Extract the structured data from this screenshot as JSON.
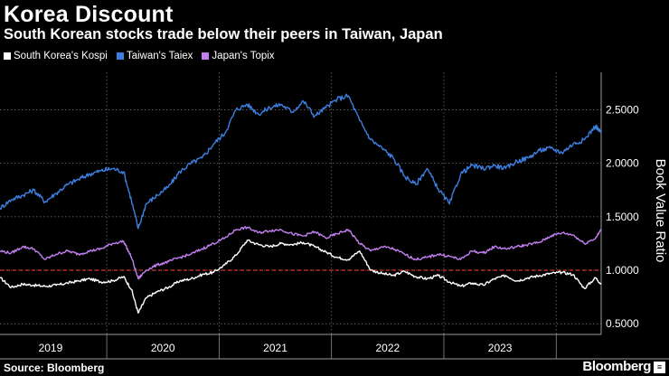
{
  "title": "Korea Discount",
  "subtitle": "South Korean stocks trade below their peers in Taiwan, Japan",
  "source": "Source: Bloomberg",
  "brand": "Bloomberg",
  "brand_icon": "bloomberg-logo-icon",
  "chart_data": {
    "type": "line",
    "title": "Korea Discount",
    "subtitle": "South Korean stocks trade below their peers in Taiwan, Japan",
    "ylabel": "Book Value Ratio",
    "xlabel": "",
    "x_range": [
      2018.55,
      2023.9
    ],
    "ylim": [
      0.4,
      2.85
    ],
    "yticks": [
      0.5,
      1.0,
      1.5,
      2.0,
      2.5
    ],
    "ytick_labels": [
      "0.5000",
      "1.0000",
      "1.5000",
      "2.0000",
      "2.5000"
    ],
    "xtick_labels": [
      "2019",
      "2020",
      "2021",
      "2022",
      "2023"
    ],
    "xtick_centers": [
      2019.0,
      2020.0,
      2021.0,
      2022.0,
      2023.0
    ],
    "year_boundaries": [
      2019.5,
      2020.5,
      2021.5,
      2022.5,
      2023.5
    ],
    "grid": "dotted",
    "reference_line": {
      "y": 1.0,
      "color": "#e03030",
      "style": "dashed"
    },
    "legend_position": "top-left",
    "series": [
      {
        "name": "South Korea's Kospi",
        "color": "#ffffff",
        "x": [
          2018.55,
          2018.65,
          2018.75,
          2018.85,
          2018.95,
          2019.05,
          2019.15,
          2019.25,
          2019.35,
          2019.45,
          2019.55,
          2019.65,
          2019.72,
          2019.78,
          2019.85,
          2019.95,
          2020.05,
          2020.15,
          2020.25,
          2020.35,
          2020.45,
          2020.55,
          2020.65,
          2020.75,
          2020.85,
          2020.95,
          2021.05,
          2021.15,
          2021.25,
          2021.35,
          2021.45,
          2021.55,
          2021.65,
          2021.75,
          2021.85,
          2021.95,
          2022.05,
          2022.15,
          2022.25,
          2022.35,
          2022.45,
          2022.55,
          2022.65,
          2022.75,
          2022.85,
          2022.95,
          2023.05,
          2023.15,
          2023.25,
          2023.35,
          2023.45,
          2023.55,
          2023.65,
          2023.75,
          2023.85,
          2023.9
        ],
        "values": [
          0.93,
          0.84,
          0.87,
          0.86,
          0.85,
          0.86,
          0.88,
          0.9,
          0.92,
          0.89,
          0.9,
          0.94,
          0.82,
          0.6,
          0.74,
          0.8,
          0.84,
          0.9,
          0.92,
          0.96,
          0.98,
          1.05,
          1.14,
          1.28,
          1.24,
          1.22,
          1.25,
          1.24,
          1.26,
          1.22,
          1.17,
          1.12,
          1.1,
          1.18,
          1.0,
          0.97,
          0.95,
          0.99,
          0.94,
          0.92,
          0.95,
          0.89,
          0.85,
          0.88,
          0.86,
          0.92,
          0.95,
          0.9,
          0.93,
          0.95,
          0.97,
          0.98,
          0.96,
          0.83,
          0.93,
          0.87
        ]
      },
      {
        "name": "Taiwan's Taiex",
        "color": "#3d7fe0",
        "x": [
          2018.55,
          2018.65,
          2018.75,
          2018.85,
          2018.95,
          2019.05,
          2019.15,
          2019.25,
          2019.35,
          2019.45,
          2019.55,
          2019.65,
          2019.72,
          2019.78,
          2019.85,
          2019.95,
          2020.05,
          2020.15,
          2020.25,
          2020.35,
          2020.45,
          2020.55,
          2020.65,
          2020.75,
          2020.85,
          2020.95,
          2021.05,
          2021.15,
          2021.25,
          2021.35,
          2021.45,
          2021.55,
          2021.65,
          2021.75,
          2021.85,
          2021.95,
          2022.05,
          2022.15,
          2022.25,
          2022.35,
          2022.45,
          2022.55,
          2022.65,
          2022.75,
          2022.85,
          2022.95,
          2023.05,
          2023.15,
          2023.25,
          2023.35,
          2023.45,
          2023.55,
          2023.65,
          2023.75,
          2023.85,
          2023.9
        ],
        "values": [
          1.58,
          1.66,
          1.7,
          1.75,
          1.64,
          1.72,
          1.8,
          1.85,
          1.9,
          1.93,
          1.95,
          1.92,
          1.65,
          1.39,
          1.62,
          1.7,
          1.78,
          1.92,
          2.0,
          2.05,
          2.18,
          2.28,
          2.5,
          2.55,
          2.46,
          2.52,
          2.55,
          2.48,
          2.58,
          2.44,
          2.52,
          2.6,
          2.63,
          2.4,
          2.22,
          2.14,
          2.05,
          1.88,
          1.8,
          1.95,
          1.76,
          1.62,
          1.9,
          1.98,
          1.95,
          1.98,
          1.95,
          2.02,
          2.05,
          2.12,
          2.14,
          2.1,
          2.18,
          2.22,
          2.35,
          2.28
        ]
      },
      {
        "name": "Japan's Topix",
        "color": "#c27ff0",
        "x": [
          2018.55,
          2018.65,
          2018.75,
          2018.85,
          2018.95,
          2019.05,
          2019.15,
          2019.25,
          2019.35,
          2019.45,
          2019.55,
          2019.65,
          2019.72,
          2019.78,
          2019.85,
          2019.95,
          2020.05,
          2020.15,
          2020.25,
          2020.35,
          2020.45,
          2020.55,
          2020.65,
          2020.75,
          2020.85,
          2020.95,
          2021.05,
          2021.15,
          2021.25,
          2021.35,
          2021.45,
          2021.55,
          2021.65,
          2021.75,
          2021.85,
          2021.95,
          2022.05,
          2022.15,
          2022.25,
          2022.35,
          2022.45,
          2022.55,
          2022.65,
          2022.75,
          2022.85,
          2022.95,
          2023.05,
          2023.15,
          2023.25,
          2023.35,
          2023.45,
          2023.55,
          2023.65,
          2023.75,
          2023.85,
          2023.9
        ],
        "values": [
          1.18,
          1.16,
          1.22,
          1.2,
          1.1,
          1.15,
          1.18,
          1.15,
          1.18,
          1.2,
          1.25,
          1.27,
          1.12,
          0.92,
          1.0,
          1.05,
          1.08,
          1.12,
          1.15,
          1.2,
          1.25,
          1.3,
          1.38,
          1.4,
          1.35,
          1.37,
          1.38,
          1.34,
          1.32,
          1.36,
          1.3,
          1.34,
          1.38,
          1.25,
          1.18,
          1.22,
          1.2,
          1.15,
          1.1,
          1.12,
          1.15,
          1.13,
          1.1,
          1.18,
          1.16,
          1.22,
          1.2,
          1.22,
          1.24,
          1.26,
          1.32,
          1.35,
          1.33,
          1.25,
          1.3,
          1.38
        ]
      }
    ]
  }
}
